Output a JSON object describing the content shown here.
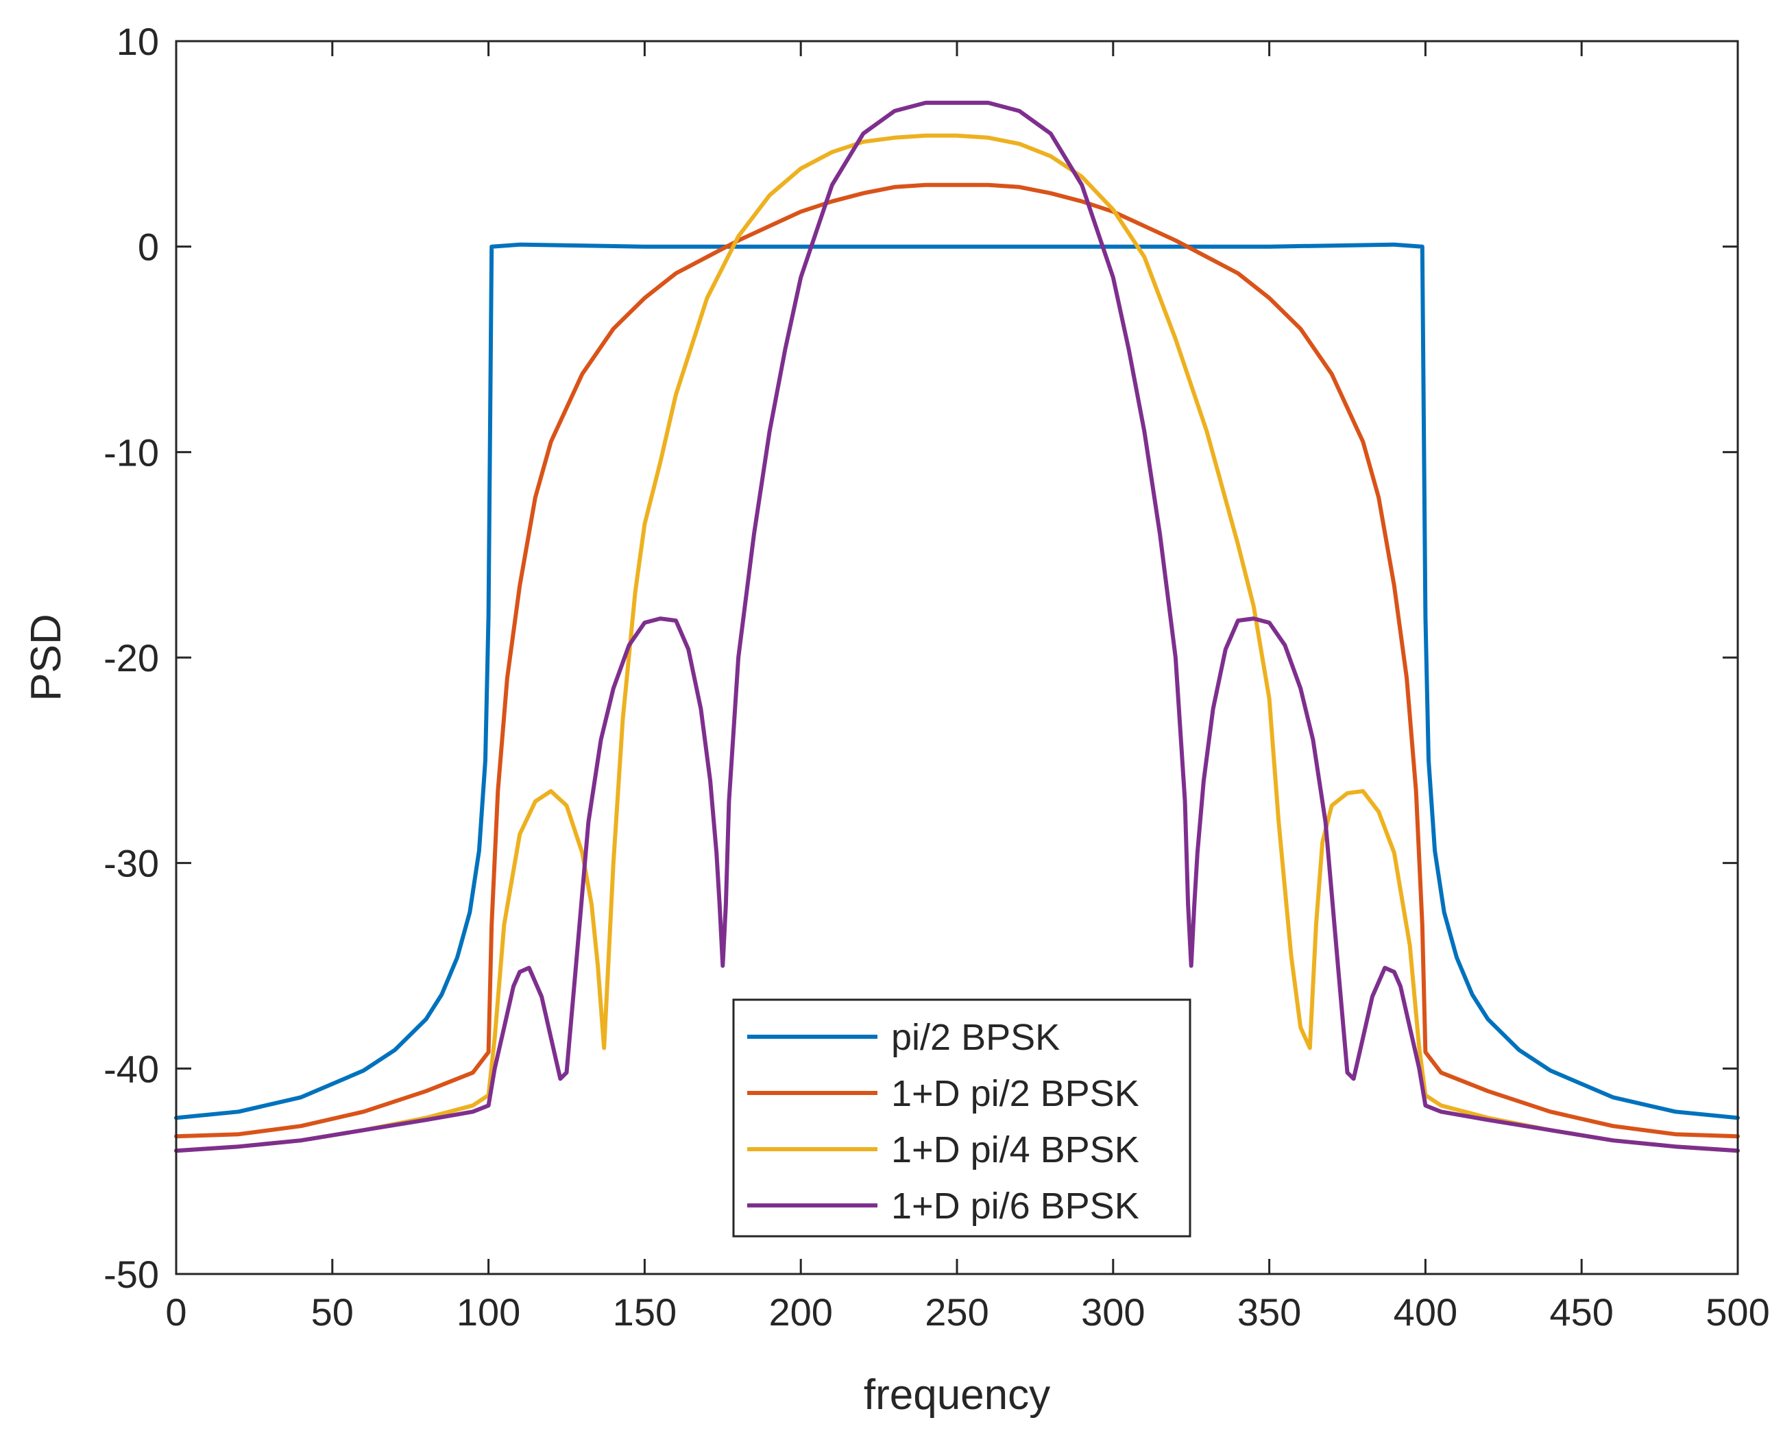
{
  "chart_data": {
    "type": "line",
    "title": "",
    "xlabel": "frequency",
    "ylabel": "PSD",
    "xlim": [
      0,
      500
    ],
    "ylim": [
      -50,
      10
    ],
    "xticks": [
      0,
      50,
      100,
      150,
      200,
      250,
      300,
      350,
      400,
      450,
      500
    ],
    "yticks": [
      -50,
      -40,
      -30,
      -20,
      -10,
      0,
      10
    ],
    "xtick_labels": [
      "0",
      "50",
      "100",
      "150",
      "200",
      "250",
      "300",
      "350",
      "400",
      "450",
      "500"
    ],
    "ytick_labels": [
      "-50",
      "-40",
      "-30",
      "-20",
      "-10",
      "0",
      "10"
    ],
    "grid": false,
    "legend_position": "bottom-center",
    "series": [
      {
        "name": "pi/2 BPSK",
        "color": "#0072BD",
        "x": [
          0,
          20,
          40,
          60,
          70,
          80,
          85,
          90,
          94,
          97,
          99,
          100,
          101,
          110,
          150,
          200,
          250,
          300,
          350,
          390,
          399,
          400,
          401,
          403,
          406,
          410,
          415,
          420,
          430,
          440,
          460,
          480,
          500
        ],
        "y": [
          -42.4,
          -42.1,
          -41.4,
          -40.1,
          -39.1,
          -37.6,
          -36.4,
          -34.6,
          -32.4,
          -29.4,
          -25.0,
          -18.0,
          0.0,
          0.1,
          0.0,
          0.0,
          0.0,
          0.0,
          0.0,
          0.1,
          0.0,
          -18.0,
          -25.0,
          -29.4,
          -32.4,
          -34.6,
          -36.4,
          -37.6,
          -39.1,
          -40.1,
          -41.4,
          -42.1,
          -42.4
        ]
      },
      {
        "name": "1+D pi/2 BPSK",
        "color": "#D95319",
        "x": [
          0,
          20,
          40,
          60,
          80,
          95,
          100,
          101,
          103,
          106,
          110,
          115,
          120,
          130,
          140,
          150,
          160,
          170,
          180,
          190,
          200,
          210,
          220,
          230,
          240,
          250,
          260,
          270,
          280,
          290,
          300,
          310,
          320,
          330,
          340,
          350,
          360,
          370,
          380,
          385,
          390,
          394,
          397,
          399,
          400,
          405,
          420,
          440,
          460,
          480,
          500
        ],
        "y": [
          -43.3,
          -43.2,
          -42.8,
          -42.1,
          -41.1,
          -40.2,
          -39.2,
          -33.0,
          -26.5,
          -21.0,
          -16.5,
          -12.2,
          -9.5,
          -6.2,
          -4.0,
          -2.5,
          -1.3,
          -0.5,
          0.3,
          1.0,
          1.7,
          2.2,
          2.6,
          2.9,
          3.0,
          3.0,
          3.0,
          2.9,
          2.6,
          2.2,
          1.7,
          1.0,
          0.3,
          -0.5,
          -1.3,
          -2.5,
          -4.0,
          -6.2,
          -9.5,
          -12.2,
          -16.5,
          -21.0,
          -26.5,
          -33.0,
          -39.2,
          -40.2,
          -41.1,
          -42.1,
          -42.8,
          -43.2,
          -43.3
        ]
      },
      {
        "name": "1+D pi/4 BPSK",
        "color": "#EDB120",
        "x": [
          0,
          20,
          40,
          60,
          80,
          95,
          100,
          102,
          105,
          110,
          115,
          120,
          125,
          130,
          133,
          135,
          137,
          140,
          143,
          147,
          150,
          155,
          160,
          170,
          180,
          190,
          200,
          210,
          220,
          230,
          240,
          250,
          260,
          270,
          280,
          290,
          300,
          310,
          320,
          330,
          340,
          345,
          350,
          353,
          357,
          360,
          363,
          365,
          367,
          370,
          375,
          380,
          385,
          390,
          395,
          398,
          400,
          405,
          420,
          440,
          460,
          480,
          500
        ],
        "y": [
          -44.0,
          -43.8,
          -43.5,
          -43.0,
          -42.4,
          -41.8,
          -41.3,
          -38.5,
          -33.0,
          -28.6,
          -27.0,
          -26.5,
          -27.2,
          -29.5,
          -32.0,
          -35.0,
          -39.0,
          -30.0,
          -23.0,
          -16.8,
          -13.5,
          -10.5,
          -7.2,
          -2.5,
          0.5,
          2.5,
          3.8,
          4.6,
          5.1,
          5.3,
          5.4,
          5.4,
          5.3,
          5.0,
          4.4,
          3.4,
          1.8,
          -0.5,
          -4.5,
          -9.0,
          -14.5,
          -17.5,
          -22.0,
          -28.0,
          -34.5,
          -38.0,
          -39.0,
          -33.0,
          -29.0,
          -27.2,
          -26.6,
          -26.5,
          -27.5,
          -29.5,
          -34.0,
          -39.0,
          -41.3,
          -41.8,
          -42.4,
          -43.0,
          -43.5,
          -43.8,
          -44.0
        ]
      },
      {
        "name": "1+D pi/6 BPSK",
        "color": "#7E2F8E",
        "x": [
          0,
          20,
          40,
          60,
          80,
          95,
          100,
          102,
          105,
          108,
          110,
          113,
          117,
          120,
          123,
          125,
          128,
          132,
          136,
          140,
          145,
          150,
          155,
          160,
          164,
          168,
          171,
          173,
          174,
          175,
          176,
          177,
          180,
          185,
          190,
          195,
          200,
          210,
          220,
          230,
          240,
          250,
          260,
          270,
          280,
          290,
          300,
          305,
          310,
          315,
          320,
          323,
          324,
          325,
          326,
          327,
          329,
          332,
          336,
          340,
          345,
          350,
          355,
          360,
          364,
          368,
          372,
          375,
          377,
          380,
          383,
          387,
          390,
          392,
          395,
          398,
          400,
          405,
          420,
          440,
          460,
          480,
          500
        ],
        "y": [
          -44.0,
          -43.8,
          -43.5,
          -43.0,
          -42.5,
          -42.1,
          -41.8,
          -40.0,
          -38.0,
          -36.0,
          -35.3,
          -35.1,
          -36.5,
          -38.5,
          -40.5,
          -40.2,
          -35.0,
          -28.0,
          -24.0,
          -21.5,
          -19.4,
          -18.3,
          -18.1,
          -18.2,
          -19.6,
          -22.5,
          -26.0,
          -29.5,
          -32.0,
          -35.0,
          -32.0,
          -27.0,
          -20.0,
          -14.0,
          -9.0,
          -5.0,
          -1.5,
          3.0,
          5.5,
          6.6,
          7.0,
          7.0,
          7.0,
          6.6,
          5.5,
          3.0,
          -1.5,
          -5.0,
          -9.0,
          -14.0,
          -20.0,
          -27.0,
          -32.0,
          -35.0,
          -32.0,
          -29.5,
          -26.0,
          -22.5,
          -19.6,
          -18.2,
          -18.1,
          -18.3,
          -19.4,
          -21.5,
          -24.0,
          -28.0,
          -35.0,
          -40.2,
          -40.5,
          -38.5,
          -36.5,
          -35.1,
          -35.3,
          -36.0,
          -38.0,
          -40.0,
          -41.8,
          -42.1,
          -42.5,
          -43.0,
          -43.5,
          -43.8,
          -44.0
        ]
      }
    ]
  }
}
